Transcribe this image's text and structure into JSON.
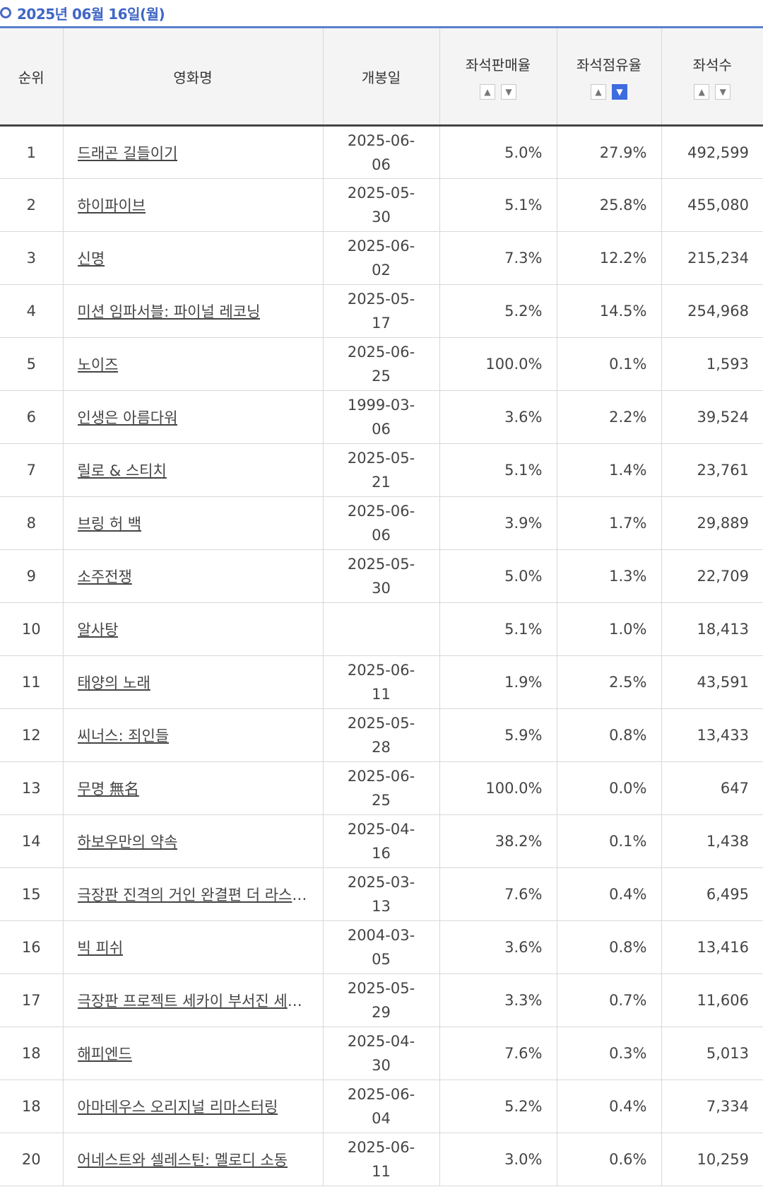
{
  "header": {
    "date": "2025년 06월 16일(월)"
  },
  "columns": {
    "rank": "순위",
    "title": "영화명",
    "release": "개봉일",
    "sales_rate": "좌석판매율",
    "share_rate": "좌석점유율",
    "seats": "좌석수"
  },
  "sort_icons": {
    "up": "▲",
    "down": "▼"
  },
  "rows": [
    {
      "rank": "1",
      "title": "드래곤 길들이기",
      "release": "2025-06-06",
      "sales": "5.0%",
      "share": "27.9%",
      "seats": "492,599"
    },
    {
      "rank": "2",
      "title": "하이파이브",
      "release": "2025-05-30",
      "sales": "5.1%",
      "share": "25.8%",
      "seats": "455,080"
    },
    {
      "rank": "3",
      "title": "신명",
      "release": "2025-06-02",
      "sales": "7.3%",
      "share": "12.2%",
      "seats": "215,234"
    },
    {
      "rank": "4",
      "title": "미션 임파서블: 파이널 레코닝",
      "release": "2025-05-17",
      "sales": "5.2%",
      "share": "14.5%",
      "seats": "254,968"
    },
    {
      "rank": "5",
      "title": "노이즈",
      "release": "2025-06-25",
      "sales": "100.0%",
      "share": "0.1%",
      "seats": "1,593"
    },
    {
      "rank": "6",
      "title": "인생은 아름다워",
      "release": "1999-03-06",
      "sales": "3.6%",
      "share": "2.2%",
      "seats": "39,524"
    },
    {
      "rank": "7",
      "title": "릴로 & 스티치",
      "release": "2025-05-21",
      "sales": "5.1%",
      "share": "1.4%",
      "seats": "23,761"
    },
    {
      "rank": "8",
      "title": "브링 허 백",
      "release": "2025-06-06",
      "sales": "3.9%",
      "share": "1.7%",
      "seats": "29,889"
    },
    {
      "rank": "9",
      "title": "소주전쟁",
      "release": "2025-05-30",
      "sales": "5.0%",
      "share": "1.3%",
      "seats": "22,709"
    },
    {
      "rank": "10",
      "title": "알사탕",
      "release": "",
      "sales": "5.1%",
      "share": "1.0%",
      "seats": "18,413"
    },
    {
      "rank": "11",
      "title": "태양의 노래",
      "release": "2025-06-11",
      "sales": "1.9%",
      "share": "2.5%",
      "seats": "43,591"
    },
    {
      "rank": "12",
      "title": "씨너스: 죄인들",
      "release": "2025-05-28",
      "sales": "5.9%",
      "share": "0.8%",
      "seats": "13,433"
    },
    {
      "rank": "13",
      "title": "무명 無名",
      "release": "2025-06-25",
      "sales": "100.0%",
      "share": "0.0%",
      "seats": "647"
    },
    {
      "rank": "14",
      "title": "하보우만의 약속",
      "release": "2025-04-16",
      "sales": "38.2%",
      "share": "0.1%",
      "seats": "1,438"
    },
    {
      "rank": "15",
      "title": "극장판 진격의 거인 완결편 더 라스트 어택",
      "release": "2025-03-13",
      "sales": "7.6%",
      "share": "0.4%",
      "seats": "6,495"
    },
    {
      "rank": "16",
      "title": "빅 피쉬",
      "release": "2004-03-05",
      "sales": "3.6%",
      "share": "0.8%",
      "seats": "13,416"
    },
    {
      "rank": "17",
      "title": "극장판 프로젝트 세카이 부서진 세카이와 전해지지 않는 미쿠의 노래",
      "release": "2025-05-29",
      "sales": "3.3%",
      "share": "0.7%",
      "seats": "11,606"
    },
    {
      "rank": "18",
      "title": "해피엔드",
      "release": "2025-04-30",
      "sales": "7.6%",
      "share": "0.3%",
      "seats": "5,013"
    },
    {
      "rank": "18",
      "title": "아마데우스 오리지널 리마스터링",
      "release": "2025-06-04",
      "sales": "5.2%",
      "share": "0.4%",
      "seats": "7,334"
    },
    {
      "rank": "20",
      "title": "어네스트와 셀레스틴: 멜로디 소동",
      "release": "2025-06-11",
      "sales": "3.0%",
      "share": "0.6%",
      "seats": "10,259"
    }
  ]
}
